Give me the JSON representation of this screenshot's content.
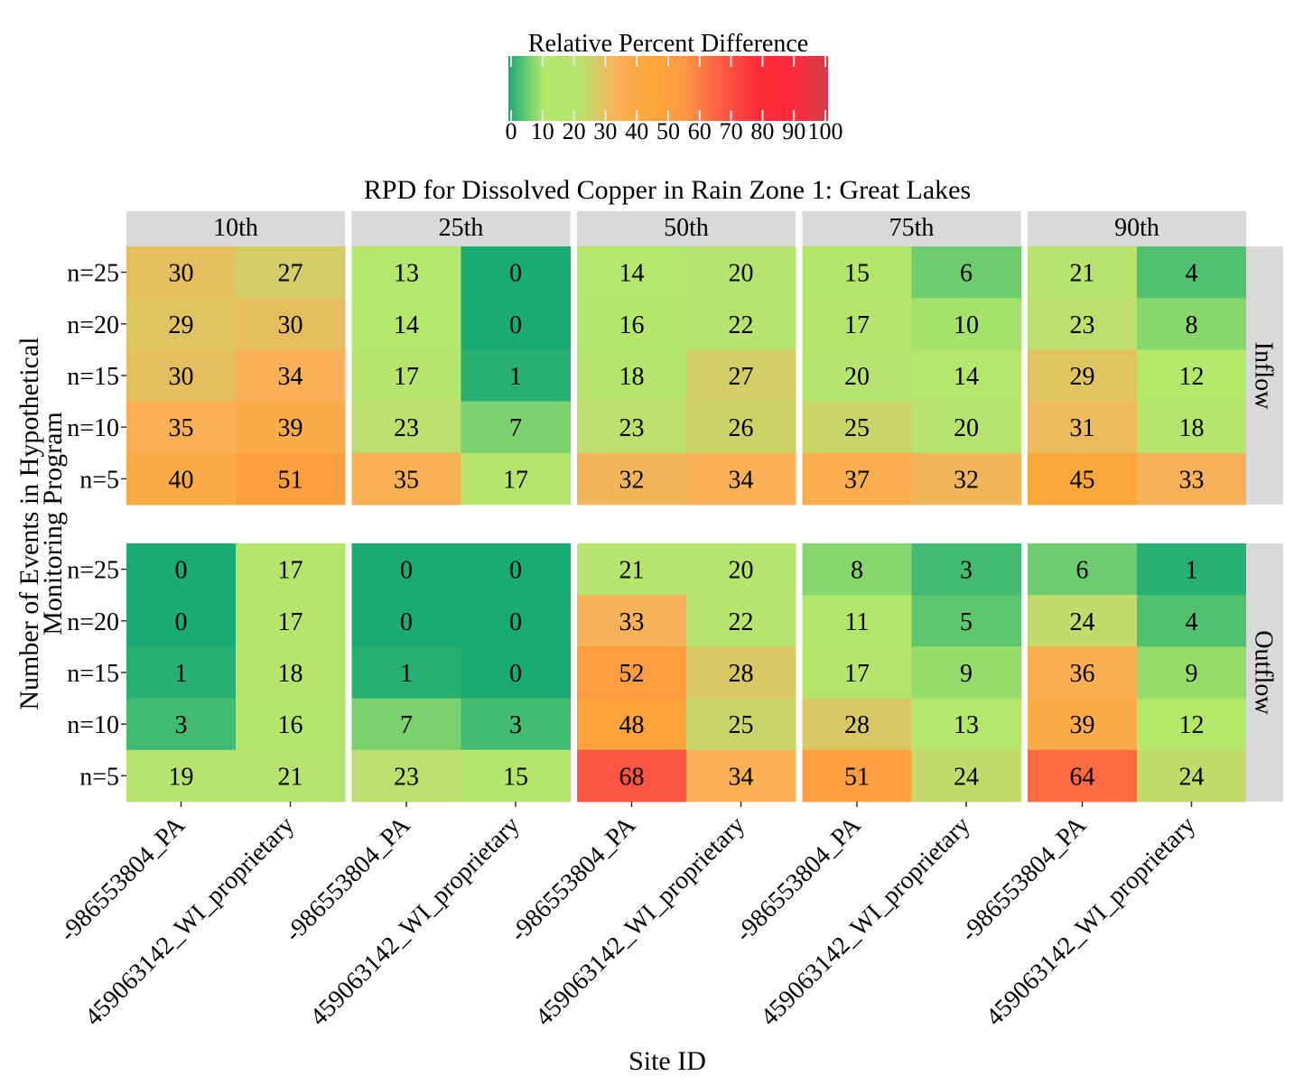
{
  "chart_data": {
    "type": "heatmap",
    "title": "RPD for Dissolved Copper in Rain Zone 1: Great Lakes",
    "xlabel": "Site ID",
    "ylabel_lines": [
      "Number of Events in Hypothetical",
      "Monitoring Program"
    ],
    "legend": {
      "title": "Relative Percent Difference",
      "ticks": [
        "0",
        "10",
        "20",
        "30",
        "40",
        "50",
        "60",
        "70",
        "80",
        "90",
        "100"
      ],
      "colors": [
        "#1aab75",
        "#b3e86a",
        "#b7e36f",
        "#f9b058",
        "#fba838",
        "#fd9844",
        "#fc5b44",
        "#ff2d3a",
        "#ff2a3c",
        "#d43e50"
      ],
      "range": [
        0,
        100
      ],
      "placement": "top-center"
    },
    "columns": [
      "10th",
      "25th",
      "50th",
      "75th",
      "90th"
    ],
    "rows": [
      "Inflow",
      "Outflow"
    ],
    "sites": [
      "-986553804_PA",
      "459063142_WI_proprietary"
    ],
    "events": [
      "n=25",
      "n=20",
      "n=15",
      "n=10",
      "n=5"
    ],
    "values": {
      "Inflow": {
        "10th": [
          [
            30,
            27
          ],
          [
            29,
            30
          ],
          [
            30,
            34
          ],
          [
            35,
            39
          ],
          [
            40,
            51
          ]
        ],
        "25th": [
          [
            13,
            0
          ],
          [
            14,
            0
          ],
          [
            17,
            1
          ],
          [
            23,
            7
          ],
          [
            35,
            17
          ]
        ],
        "50th": [
          [
            14,
            20
          ],
          [
            16,
            22
          ],
          [
            18,
            27
          ],
          [
            23,
            26
          ],
          [
            32,
            34
          ]
        ],
        "75th": [
          [
            15,
            6
          ],
          [
            17,
            10
          ],
          [
            20,
            14
          ],
          [
            25,
            20
          ],
          [
            37,
            32
          ]
        ],
        "90th": [
          [
            21,
            4
          ],
          [
            23,
            8
          ],
          [
            29,
            12
          ],
          [
            31,
            18
          ],
          [
            45,
            33
          ]
        ]
      },
      "Outflow": {
        "10th": [
          [
            0,
            17
          ],
          [
            0,
            17
          ],
          [
            1,
            18
          ],
          [
            3,
            16
          ],
          [
            19,
            21
          ]
        ],
        "25th": [
          [
            0,
            0
          ],
          [
            0,
            0
          ],
          [
            1,
            0
          ],
          [
            7,
            3
          ],
          [
            23,
            15
          ]
        ],
        "50th": [
          [
            21,
            20
          ],
          [
            33,
            22
          ],
          [
            52,
            28
          ],
          [
            48,
            25
          ],
          [
            68,
            34
          ]
        ],
        "75th": [
          [
            8,
            3
          ],
          [
            11,
            5
          ],
          [
            17,
            9
          ],
          [
            28,
            13
          ],
          [
            51,
            24
          ]
        ],
        "90th": [
          [
            6,
            1
          ],
          [
            24,
            4
          ],
          [
            36,
            9
          ],
          [
            39,
            12
          ],
          [
            64,
            24
          ]
        ]
      }
    }
  }
}
